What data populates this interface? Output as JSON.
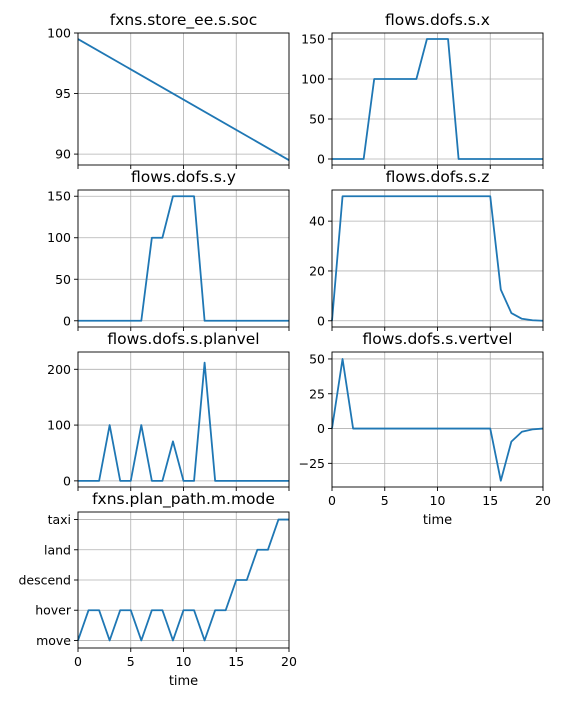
{
  "colors": {
    "series": "#1f77b4",
    "grid": "#b0b0b0",
    "axes": "#000000"
  },
  "chart_data": [
    {
      "type": "line",
      "title": "fxns.store_ee.s.soc",
      "xlabel": "",
      "xlim": [
        0,
        20
      ],
      "xticks": [
        0,
        5,
        10,
        15,
        20
      ],
      "show_xticklabels": false,
      "ylim": [
        89.1,
        100
      ],
      "yticks": [
        90,
        95,
        100
      ],
      "ytick_labels": [
        "90",
        "95",
        "100"
      ],
      "grid": true,
      "x": [
        0,
        20
      ],
      "y": [
        99.5,
        89.5
      ]
    },
    {
      "type": "line",
      "title": "flows.dofs.s.x",
      "xlabel": "",
      "xlim": [
        0,
        20
      ],
      "xticks": [
        0,
        5,
        10,
        15,
        20
      ],
      "show_xticklabels": false,
      "ylim": [
        -7.5,
        157.5
      ],
      "yticks": [
        0,
        50,
        100,
        150
      ],
      "ytick_labels": [
        "0",
        "50",
        "100",
        "150"
      ],
      "grid": true,
      "x": [
        0,
        1,
        2,
        3,
        4,
        5,
        6,
        7,
        8,
        9,
        10,
        11,
        12,
        13,
        14,
        15,
        16,
        17,
        18,
        19,
        20
      ],
      "y": [
        0,
        0,
        0,
        0,
        100,
        100,
        100,
        100,
        100,
        150,
        150,
        150,
        0,
        0,
        0,
        0,
        0,
        0,
        0,
        0,
        0
      ]
    },
    {
      "type": "line",
      "title": "flows.dofs.s.y",
      "xlabel": "",
      "xlim": [
        0,
        20
      ],
      "xticks": [
        0,
        5,
        10,
        15,
        20
      ],
      "show_xticklabels": false,
      "ylim": [
        -7.5,
        157.5
      ],
      "yticks": [
        0,
        50,
        100,
        150
      ],
      "ytick_labels": [
        "0",
        "50",
        "100",
        "150"
      ],
      "grid": true,
      "x": [
        0,
        1,
        2,
        3,
        4,
        5,
        6,
        7,
        8,
        9,
        10,
        11,
        12,
        13,
        14,
        15,
        16,
        17,
        18,
        19,
        20
      ],
      "y": [
        0,
        0,
        0,
        0,
        0,
        0,
        0,
        100,
        100,
        150,
        150,
        150,
        0,
        0,
        0,
        0,
        0,
        0,
        0,
        0,
        0
      ]
    },
    {
      "type": "line",
      "title": "flows.dofs.s.z",
      "xlabel": "",
      "xlim": [
        0,
        20
      ],
      "xticks": [
        0,
        5,
        10,
        15,
        20
      ],
      "show_xticklabels": false,
      "ylim": [
        -2.5,
        52.5
      ],
      "yticks": [
        0,
        20,
        40
      ],
      "ytick_labels": [
        "0",
        "20",
        "40"
      ],
      "grid": true,
      "x": [
        0,
        1,
        2,
        3,
        4,
        5,
        6,
        7,
        8,
        9,
        10,
        11,
        12,
        13,
        14,
        15,
        16,
        17,
        18,
        19,
        20
      ],
      "y": [
        0,
        50,
        50,
        50,
        50,
        50,
        50,
        50,
        50,
        50,
        50,
        50,
        50,
        50,
        50,
        50,
        12.5,
        3.1,
        0.8,
        0.2,
        0
      ]
    },
    {
      "type": "line",
      "title": "flows.dofs.s.planvel",
      "xlabel": "",
      "xlim": [
        0,
        20
      ],
      "xticks": [
        0,
        5,
        10,
        15,
        20
      ],
      "show_xticklabels": false,
      "ylim": [
        -11,
        231
      ],
      "yticks": [
        0,
        100,
        200
      ],
      "ytick_labels": [
        "0",
        "100",
        "200"
      ],
      "grid": true,
      "x": [
        0,
        1,
        2,
        3,
        4,
        5,
        6,
        7,
        8,
        9,
        10,
        11,
        12,
        13,
        14,
        15,
        16,
        17,
        18,
        19,
        20
      ],
      "y": [
        0,
        0,
        0,
        100,
        0,
        0,
        100,
        0,
        0,
        70.7,
        0,
        0,
        212,
        0,
        0,
        0,
        0,
        0,
        0,
        0,
        0
      ]
    },
    {
      "type": "line",
      "title": "flows.dofs.s.vertvel",
      "xlabel": "time",
      "xlim": [
        0,
        20
      ],
      "xticks": [
        0,
        5,
        10,
        15,
        20
      ],
      "show_xticklabels": true,
      "ylim": [
        -42,
        55
      ],
      "yticks": [
        -25,
        0,
        25,
        50
      ],
      "ytick_labels": [
        "−25",
        "0",
        "25",
        "50"
      ],
      "grid": true,
      "x": [
        0,
        1,
        2,
        3,
        4,
        5,
        6,
        7,
        8,
        9,
        10,
        11,
        12,
        13,
        14,
        15,
        16,
        17,
        18,
        19,
        20
      ],
      "y": [
        0,
        50,
        0,
        0,
        0,
        0,
        0,
        0,
        0,
        0,
        0,
        0,
        0,
        0,
        0,
        0,
        -37.5,
        -9.4,
        -2.3,
        -0.6,
        0
      ]
    },
    {
      "type": "line",
      "title": "fxns.plan_path.m.mode",
      "xlabel": "time",
      "xlim": [
        0,
        20
      ],
      "xticks": [
        0,
        5,
        10,
        15,
        20
      ],
      "show_xticklabels": true,
      "ylim": [
        -0.25,
        4.25
      ],
      "yticks": [
        0,
        1,
        2,
        3,
        4
      ],
      "ytick_labels": [
        "move",
        "hover",
        "descend",
        "land",
        "taxi"
      ],
      "grid": true,
      "x": [
        0,
        1,
        2,
        3,
        4,
        5,
        6,
        7,
        8,
        9,
        10,
        11,
        12,
        13,
        14,
        15,
        16,
        17,
        18,
        19,
        20
      ],
      "y": [
        0,
        1,
        1,
        0,
        1,
        1,
        0,
        1,
        1,
        0,
        1,
        1,
        0,
        1,
        1,
        2,
        2,
        3,
        3,
        4,
        4
      ]
    }
  ]
}
